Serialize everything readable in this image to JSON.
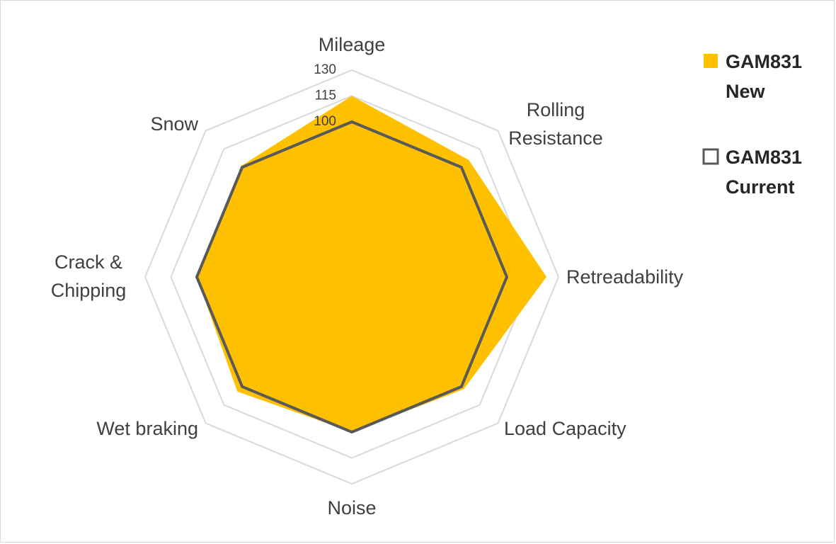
{
  "chart_data": {
    "type": "radar",
    "categories": [
      "Mileage",
      "Rolling Resistance",
      "Retreadability",
      "Load Capacity",
      "Noise",
      "Wet braking",
      "Crack & Chipping",
      "Snow"
    ],
    "category_lines": [
      [
        "Mileage"
      ],
      [
        "Rolling",
        "Resistance"
      ],
      [
        "Retreadability"
      ],
      [
        "Load Capacity"
      ],
      [
        "Noise"
      ],
      [
        "Wet braking"
      ],
      [
        "Crack &",
        "Chipping"
      ],
      [
        "Snow"
      ]
    ],
    "series": [
      {
        "name": "GAM831 New",
        "name_lines": [
          "GAM831",
          "New"
        ],
        "values": [
          115,
          106,
          123,
          102,
          100,
          104,
          100,
          101
        ],
        "color": "#FFC000",
        "style": "filled"
      },
      {
        "name": "GAM831 Current",
        "name_lines": [
          "GAM831",
          "Current"
        ],
        "values": [
          100,
          100,
          100,
          100,
          100,
          100,
          100,
          100
        ],
        "color": "#595959",
        "style": "outline"
      }
    ],
    "ticks": [
      100,
      115,
      130
    ],
    "rlim": [
      10,
      130
    ],
    "grid_step": 15,
    "grid_color": "#d9d9d9",
    "legend_position": "right"
  }
}
